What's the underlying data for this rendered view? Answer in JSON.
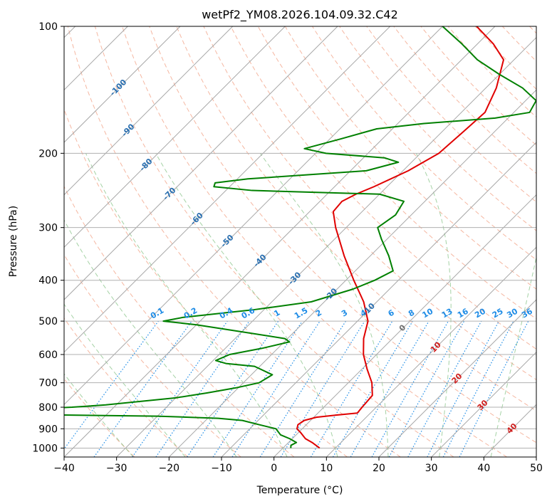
{
  "chart_data": {
    "type": "line",
    "title": "wetPf2_YM08.2026.104.09.32.C42",
    "xlabel": "Temperature (°C)",
    "ylabel": "Pressure (hPa)",
    "xlim": [
      -40,
      50
    ],
    "ylim": [
      1050,
      100
    ],
    "yscale": "log",
    "skew": "skew-T log-P",
    "grid": true,
    "x_ticks": [
      -40,
      -30,
      -20,
      -10,
      0,
      10,
      20,
      30,
      40,
      50
    ],
    "x_tick_labels": [
      "−40",
      "−30",
      "−20",
      "−10",
      "0",
      "10",
      "20",
      "30",
      "40",
      "50"
    ],
    "y_ticks": [
      1000,
      900,
      800,
      700,
      600,
      500,
      400,
      300,
      200,
      100
    ],
    "y_tick_labels": [
      "1000",
      "900",
      "800",
      "700",
      "600",
      "500",
      "400",
      "300",
      "200",
      "100"
    ],
    "series": [
      {
        "role": "temperature",
        "color": "#e00000",
        "points": [
          [
            1000,
            7.0
          ],
          [
            970,
            4.5
          ],
          [
            950,
            2.5
          ],
          [
            920,
            0.5
          ],
          [
            900,
            -1.0
          ],
          [
            880,
            -1.6
          ],
          [
            860,
            -1.2
          ],
          [
            845,
            0.5
          ],
          [
            835,
            4.0
          ],
          [
            826,
            7.5
          ],
          [
            800,
            7.3
          ],
          [
            750,
            7.0
          ],
          [
            700,
            4.5
          ],
          [
            650,
            1.0
          ],
          [
            600,
            -2.5
          ],
          [
            550,
            -5.5
          ],
          [
            500,
            -8.0
          ],
          [
            450,
            -12.5
          ],
          [
            400,
            -18.5
          ],
          [
            350,
            -25.0
          ],
          [
            300,
            -32.0
          ],
          [
            275,
            -35.5
          ],
          [
            260,
            -35.8
          ],
          [
            250,
            -34.5
          ],
          [
            240,
            -32.5
          ],
          [
            220,
            -29.0
          ],
          [
            200,
            -26.5
          ],
          [
            180,
            -26.0
          ],
          [
            160,
            -25.5
          ],
          [
            140,
            -28.0
          ],
          [
            120,
            -32.0
          ],
          [
            110,
            -37.0
          ],
          [
            100,
            -43.5
          ]
        ]
      },
      {
        "role": "dewpoint",
        "color": "#008000",
        "points": [
          [
            1000,
            1.5
          ],
          [
            985,
            1.0
          ],
          [
            970,
            1.5
          ],
          [
            950,
            -0.5
          ],
          [
            930,
            -3.0
          ],
          [
            900,
            -5.0
          ],
          [
            880,
            -9.0
          ],
          [
            860,
            -13.0
          ],
          [
            850,
            -18.0
          ],
          [
            840,
            -30.0
          ],
          [
            830,
            -65.0
          ],
          [
            810,
            -58.0
          ],
          [
            800,
            -48.0
          ],
          [
            790,
            -42.0
          ],
          [
            760,
            -30.0
          ],
          [
            740,
            -25.0
          ],
          [
            720,
            -20.5
          ],
          [
            700,
            -17.0
          ],
          [
            670,
            -16.0
          ],
          [
            640,
            -21.0
          ],
          [
            630,
            -27.0
          ],
          [
            620,
            -29.5
          ],
          [
            600,
            -28.0
          ],
          [
            580,
            -23.0
          ],
          [
            560,
            -19.0
          ],
          [
            550,
            -20.5
          ],
          [
            530,
            -30.0
          ],
          [
            510,
            -40.0
          ],
          [
            500,
            -47.0
          ],
          [
            490,
            -44.0
          ],
          [
            470,
            -32.0
          ],
          [
            450,
            -22.5
          ],
          [
            420,
            -17.0
          ],
          [
            400,
            -14.5
          ],
          [
            380,
            -12.8
          ],
          [
            350,
            -16.5
          ],
          [
            320,
            -21.0
          ],
          [
            300,
            -24.0
          ],
          [
            280,
            -23.0
          ],
          [
            260,
            -24.0
          ],
          [
            250,
            -30.0
          ],
          [
            245,
            -55.0
          ],
          [
            240,
            -63.0
          ],
          [
            235,
            -63.5
          ],
          [
            230,
            -58.0
          ],
          [
            220,
            -37.0
          ],
          [
            210,
            -32.5
          ],
          [
            205,
            -36.0
          ],
          [
            200,
            -48.0
          ],
          [
            195,
            -53.0
          ],
          [
            185,
            -48.0
          ],
          [
            175,
            -43.0
          ],
          [
            170,
            -35.0
          ],
          [
            165,
            -22.5
          ],
          [
            160,
            -17.0
          ],
          [
            150,
            -18.0
          ],
          [
            140,
            -23.0
          ],
          [
            130,
            -30.0
          ],
          [
            120,
            -37.0
          ],
          [
            110,
            -43.0
          ],
          [
            100,
            -50.0
          ]
        ]
      }
    ],
    "dry_adiabats": [
      -30,
      -20,
      -10,
      0,
      10,
      20,
      30,
      40,
      50,
      60,
      70,
      80,
      90,
      100,
      110,
      120,
      130,
      140,
      150,
      160,
      170,
      180,
      190,
      200
    ],
    "moist_adiabats": [
      -30,
      -20,
      -10,
      0,
      10,
      20,
      30,
      40
    ],
    "isotherms": [
      -130,
      -120,
      -110,
      -100,
      -90,
      -80,
      -70,
      -60,
      -50,
      -40,
      -30,
      -20,
      -10,
      0,
      10,
      20,
      30,
      40,
      50
    ],
    "mixing_ratio_lines": {
      "values": [
        0.1,
        0.2,
        0.4,
        0.6,
        1,
        1.5,
        2,
        3,
        4,
        6,
        8,
        10,
        13,
        16,
        20,
        25,
        30,
        36
      ],
      "labels": [
        "0.1",
        "0.2",
        "0.4",
        "0.6",
        "1",
        "1.5",
        "2",
        "3",
        "4",
        "6",
        "8",
        "10",
        "13",
        "16",
        "20",
        "25",
        "30",
        "36"
      ],
      "color": "#1e8ce6"
    },
    "isotherm_labels": [
      {
        "temp": -100,
        "text": "-100",
        "color": "#2a6fb0"
      },
      {
        "temp": -90,
        "text": "-90",
        "color": "#2a6fb0"
      },
      {
        "temp": -80,
        "text": "-80",
        "color": "#2a6fb0"
      },
      {
        "temp": -70,
        "text": "-70",
        "color": "#2a6fb0"
      },
      {
        "temp": -60,
        "text": "-60",
        "color": "#2a6fb0"
      },
      {
        "temp": -50,
        "text": "-50",
        "color": "#2a6fb0"
      },
      {
        "temp": -40,
        "text": "-40",
        "color": "#2a6fb0"
      },
      {
        "temp": -30,
        "text": "-30",
        "color": "#2a6fb0"
      },
      {
        "temp": -20,
        "text": "-20",
        "color": "#2a6fb0"
      },
      {
        "temp": -10,
        "text": "-10",
        "color": "#2a6fb0"
      },
      {
        "temp": 0,
        "text": "0",
        "color": "#707070"
      },
      {
        "temp": 10,
        "text": "10",
        "color": "#d02020"
      },
      {
        "temp": 20,
        "text": "20",
        "color": "#d02020"
      },
      {
        "temp": 30,
        "text": "30",
        "color": "#d02020"
      },
      {
        "temp": 40,
        "text": "40",
        "color": "#d02020"
      }
    ]
  }
}
